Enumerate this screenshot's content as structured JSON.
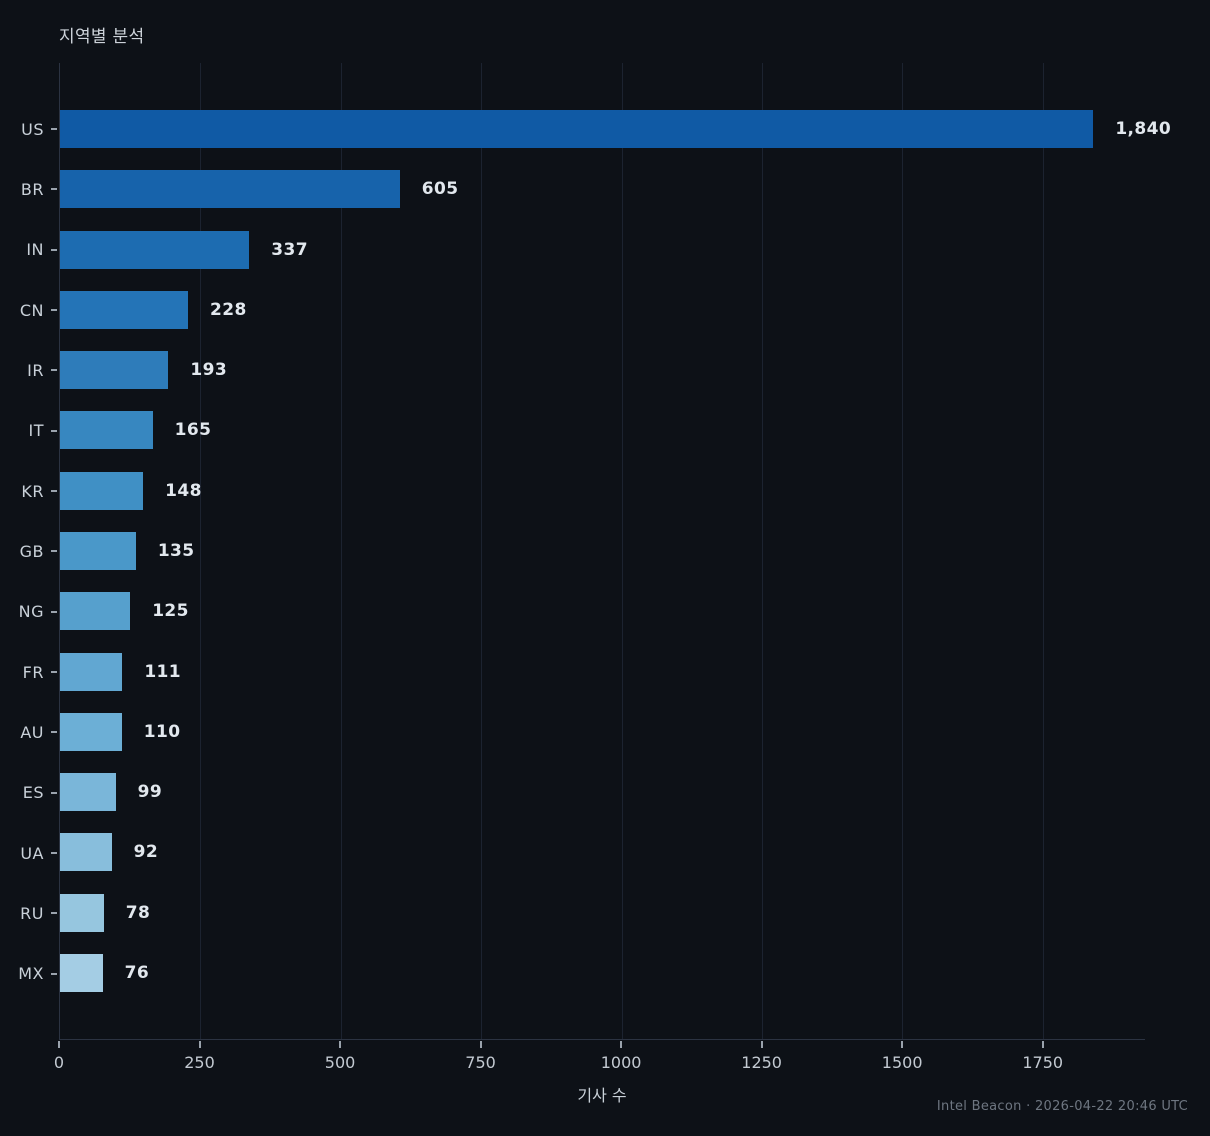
{
  "title": "지역별 분석",
  "xlabel": "기사 수",
  "footer": "Intel Beacon · 2026-04-22 20:46 UTC",
  "colors": {
    "background": "#0d1117",
    "grid": "#1c2330",
    "spine": "#2b3342",
    "tick": "#9aa3ad",
    "category_text": "#c9d1d9",
    "value_text": "#e2e8ee",
    "footer_text": "#6e7681"
  },
  "chart_data": {
    "type": "bar",
    "orientation": "horizontal",
    "title": "지역별 분석",
    "xlabel": "기사 수",
    "ylabel": "",
    "categories": [
      "US",
      "BR",
      "IN",
      "CN",
      "IR",
      "IT",
      "KR",
      "GB",
      "NG",
      "FR",
      "AU",
      "ES",
      "UA",
      "RU",
      "MX"
    ],
    "values": [
      1840,
      605,
      337,
      228,
      193,
      165,
      148,
      135,
      125,
      111,
      110,
      99,
      92,
      78,
      76
    ],
    "value_labels": [
      "1,840",
      "605",
      "337",
      "228",
      "193",
      "165",
      "148",
      "135",
      "125",
      "111",
      "110",
      "99",
      "92",
      "78",
      "76"
    ],
    "bar_colors": [
      "#105aa5",
      "#1763ab",
      "#1d6cb1",
      "#2474b7",
      "#2e7cba",
      "#3787c0",
      "#4090c5",
      "#4a98c9",
      "#56a0cd",
      "#61a7d2",
      "#6cafd6",
      "#7ab6d9",
      "#88bedc",
      "#96c6df",
      "#a4cde4"
    ],
    "xlim": [
      0,
      1932
    ],
    "xticks": [
      0,
      250,
      500,
      750,
      1000,
      1250,
      1500,
      1750
    ],
    "grid": "vertical-only",
    "legend": "none"
  }
}
